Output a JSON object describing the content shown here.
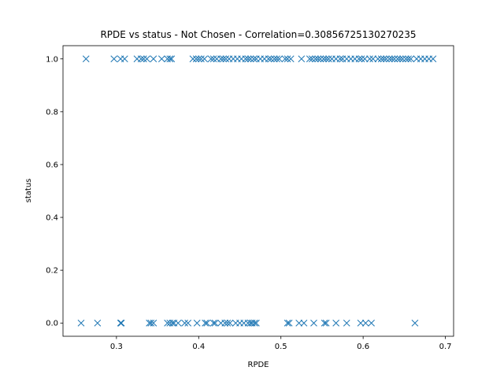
{
  "chart_data": {
    "type": "scatter",
    "title": "RPDE vs status - Not Chosen - Correlation=0.30856725130270235",
    "xlabel": "RPDE",
    "ylabel": "status",
    "xlim": [
      0.235,
      0.71
    ],
    "ylim": [
      -0.05,
      1.05
    ],
    "x_ticks": [
      0.3,
      0.4,
      0.5,
      0.6,
      0.7
    ],
    "x_tick_labels": [
      "0.3",
      "0.4",
      "0.5",
      "0.6",
      "0.7"
    ],
    "y_ticks": [
      0.0,
      0.2,
      0.4,
      0.6,
      0.8,
      1.0
    ],
    "y_tick_labels": [
      "0.0",
      "0.2",
      "0.4",
      "0.6",
      "0.8",
      "1.0"
    ],
    "grid": false,
    "marker": "x",
    "color": "#1f77b4",
    "series": [
      {
        "name": "",
        "points": [
          [
            0.257,
            0
          ],
          [
            0.277,
            0
          ],
          [
            0.305,
            0
          ],
          [
            0.306,
            0
          ],
          [
            0.34,
            0
          ],
          [
            0.342,
            0
          ],
          [
            0.345,
            0
          ],
          [
            0.362,
            0
          ],
          [
            0.365,
            0
          ],
          [
            0.368,
            0
          ],
          [
            0.37,
            0
          ],
          [
            0.375,
            0
          ],
          [
            0.383,
            0
          ],
          [
            0.387,
            0
          ],
          [
            0.398,
            0
          ],
          [
            0.408,
            0
          ],
          [
            0.41,
            0
          ],
          [
            0.418,
            0
          ],
          [
            0.42,
            0
          ],
          [
            0.427,
            0
          ],
          [
            0.432,
            0
          ],
          [
            0.435,
            0
          ],
          [
            0.438,
            0
          ],
          [
            0.445,
            0
          ],
          [
            0.45,
            0
          ],
          [
            0.455,
            0
          ],
          [
            0.46,
            0
          ],
          [
            0.463,
            0
          ],
          [
            0.465,
            0
          ],
          [
            0.468,
            0
          ],
          [
            0.47,
            0
          ],
          [
            0.508,
            0
          ],
          [
            0.51,
            0
          ],
          [
            0.522,
            0
          ],
          [
            0.528,
            0
          ],
          [
            0.54,
            0
          ],
          [
            0.553,
            0
          ],
          [
            0.555,
            0
          ],
          [
            0.567,
            0
          ],
          [
            0.58,
            0
          ],
          [
            0.597,
            0
          ],
          [
            0.603,
            0
          ],
          [
            0.61,
            0
          ],
          [
            0.663,
            0
          ],
          [
            0.263,
            1
          ],
          [
            0.297,
            1
          ],
          [
            0.305,
            1
          ],
          [
            0.31,
            1
          ],
          [
            0.325,
            1
          ],
          [
            0.33,
            1
          ],
          [
            0.333,
            1
          ],
          [
            0.337,
            1
          ],
          [
            0.345,
            1
          ],
          [
            0.355,
            1
          ],
          [
            0.362,
            1
          ],
          [
            0.365,
            1
          ],
          [
            0.367,
            1
          ],
          [
            0.393,
            1
          ],
          [
            0.397,
            1
          ],
          [
            0.4,
            1
          ],
          [
            0.403,
            1
          ],
          [
            0.407,
            1
          ],
          [
            0.415,
            1
          ],
          [
            0.418,
            1
          ],
          [
            0.422,
            1
          ],
          [
            0.427,
            1
          ],
          [
            0.43,
            1
          ],
          [
            0.433,
            1
          ],
          [
            0.437,
            1
          ],
          [
            0.442,
            1
          ],
          [
            0.447,
            1
          ],
          [
            0.452,
            1
          ],
          [
            0.457,
            1
          ],
          [
            0.46,
            1
          ],
          [
            0.463,
            1
          ],
          [
            0.467,
            1
          ],
          [
            0.47,
            1
          ],
          [
            0.475,
            1
          ],
          [
            0.48,
            1
          ],
          [
            0.485,
            1
          ],
          [
            0.488,
            1
          ],
          [
            0.492,
            1
          ],
          [
            0.495,
            1
          ],
          [
            0.498,
            1
          ],
          [
            0.505,
            1
          ],
          [
            0.508,
            1
          ],
          [
            0.512,
            1
          ],
          [
            0.525,
            1
          ],
          [
            0.535,
            1
          ],
          [
            0.538,
            1
          ],
          [
            0.542,
            1
          ],
          [
            0.545,
            1
          ],
          [
            0.548,
            1
          ],
          [
            0.552,
            1
          ],
          [
            0.555,
            1
          ],
          [
            0.558,
            1
          ],
          [
            0.562,
            1
          ],
          [
            0.567,
            1
          ],
          [
            0.572,
            1
          ],
          [
            0.575,
            1
          ],
          [
            0.58,
            1
          ],
          [
            0.585,
            1
          ],
          [
            0.59,
            1
          ],
          [
            0.595,
            1
          ],
          [
            0.598,
            1
          ],
          [
            0.602,
            1
          ],
          [
            0.608,
            1
          ],
          [
            0.612,
            1
          ],
          [
            0.618,
            1
          ],
          [
            0.622,
            1
          ],
          [
            0.625,
            1
          ],
          [
            0.628,
            1
          ],
          [
            0.632,
            1
          ],
          [
            0.635,
            1
          ],
          [
            0.638,
            1
          ],
          [
            0.642,
            1
          ],
          [
            0.645,
            1
          ],
          [
            0.648,
            1
          ],
          [
            0.652,
            1
          ],
          [
            0.655,
            1
          ],
          [
            0.658,
            1
          ],
          [
            0.665,
            1
          ],
          [
            0.67,
            1
          ],
          [
            0.675,
            1
          ],
          [
            0.68,
            1
          ],
          [
            0.685,
            1
          ]
        ]
      }
    ]
  }
}
